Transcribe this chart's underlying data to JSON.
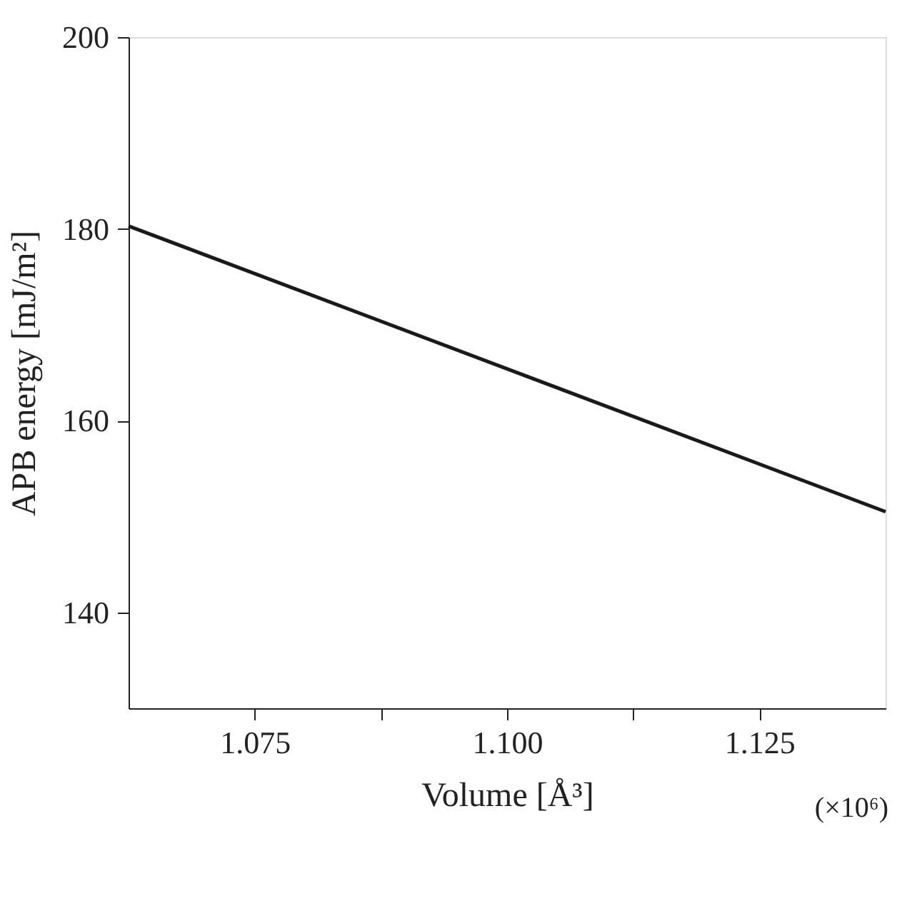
{
  "chart_data": {
    "type": "line",
    "xlabel": "Volume [Å³]",
    "ylabel": "APB energy [mJ/m²]",
    "x": [
      1.0625,
      1.1375
    ],
    "series": [
      {
        "color": "#1a1a1a",
        "values": [
          180.3,
          150.5
        ]
      }
    ],
    "xlim": [
      1.0625,
      1.1375
    ],
    "xticks": [
      {
        "value": 1.075,
        "label": "1.075"
      },
      {
        "value": 1.0875,
        "label": null
      },
      {
        "value": 1.1,
        "label": "1.100"
      },
      {
        "value": 1.1125,
        "label": null
      },
      {
        "value": 1.125,
        "label": "1.125"
      }
    ],
    "ylim": [
      130,
      200
    ],
    "yticks": [
      140,
      160,
      180,
      200
    ],
    "annotations": [
      "(×10⁶)"
    ],
    "grid": false,
    "legend": false,
    "marker": "none",
    "line_style": "solid"
  }
}
